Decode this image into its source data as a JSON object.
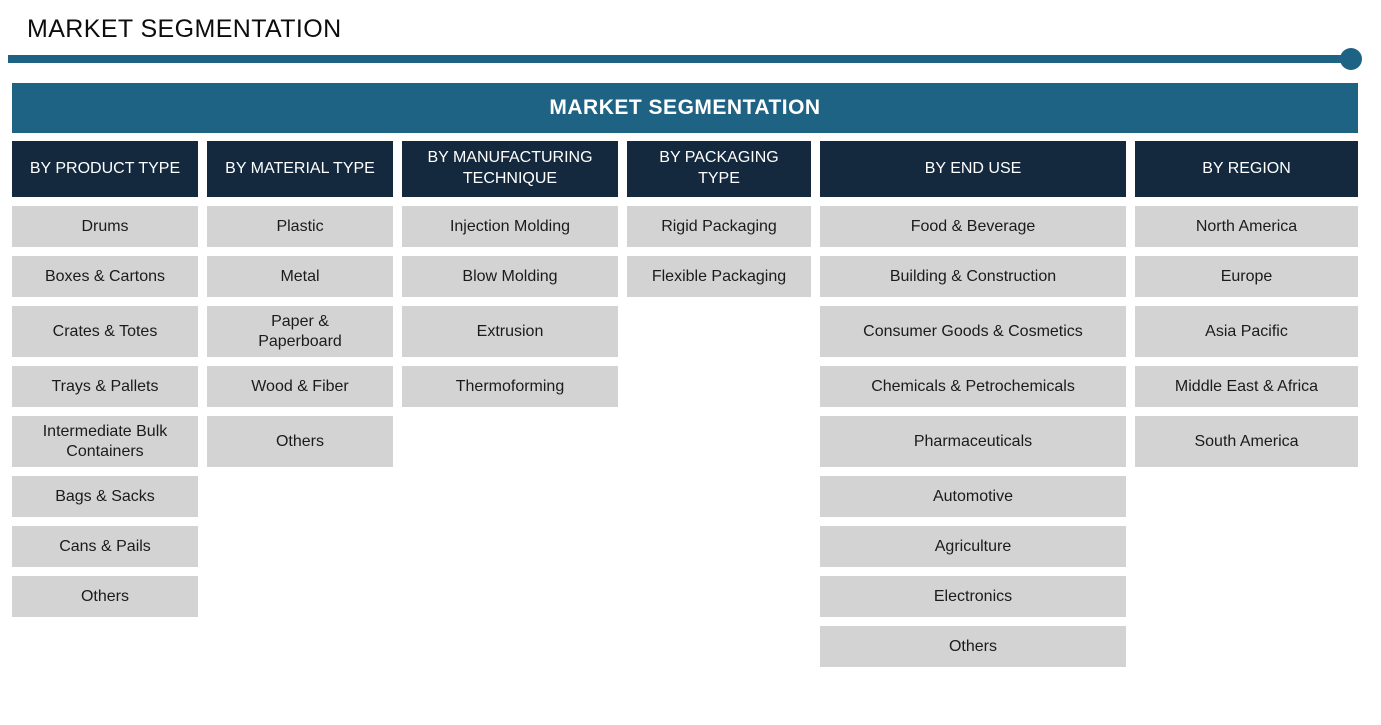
{
  "page": {
    "title": "MARKET SEGMENTATION",
    "banner_title": "MARKET SEGMENTATION"
  },
  "colors": {
    "teal": "#1E6384",
    "navy": "#14293E",
    "cellGray": "#D3D3D3",
    "cellText": "#1B1B1B",
    "headerText": "#FFFFFF"
  },
  "segmentation": {
    "columns": [
      {
        "header": "BY PRODUCT TYPE",
        "items": [
          "Drums",
          "Boxes & Cartons",
          "Crates & Totes",
          "Trays & Pallets",
          "Intermediate Bulk\nContainers",
          "Bags & Sacks",
          "Cans & Pails",
          "Others"
        ]
      },
      {
        "header": "BY MATERIAL TYPE",
        "items": [
          "Plastic",
          "Metal",
          "Paper &\nPaperboard",
          "Wood & Fiber",
          "Others"
        ]
      },
      {
        "header": "BY MANUFACTURING\nTECHNIQUE",
        "items": [
          "Injection Molding",
          "Blow Molding",
          "Extrusion",
          "Thermoforming"
        ]
      },
      {
        "header": "BY PACKAGING\nTYPE",
        "items": [
          "Rigid Packaging",
          "Flexible Packaging"
        ]
      },
      {
        "header": "BY END USE",
        "items": [
          "Food & Beverage",
          "Building & Construction",
          "Consumer Goods & Cosmetics",
          "Chemicals & Petrochemicals",
          "Pharmaceuticals",
          "Automotive",
          "Agriculture",
          "Electronics",
          "Others"
        ]
      },
      {
        "header": "BY REGION",
        "items": [
          "North America",
          "Europe",
          "Asia Pacific",
          "Middle East & Africa",
          "South America"
        ]
      }
    ]
  }
}
